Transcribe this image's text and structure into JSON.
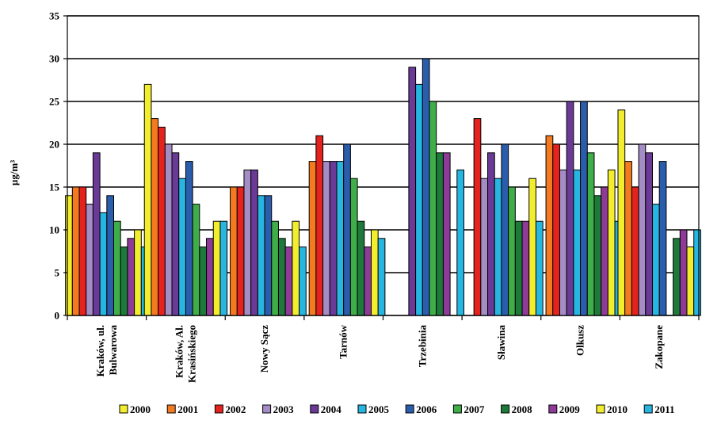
{
  "chart_data": {
    "type": "bar",
    "ylabel": "µg/m³",
    "ylim": [
      0,
      35
    ],
    "yticks": [
      0,
      5,
      10,
      15,
      20,
      25,
      30,
      35
    ],
    "grid": true,
    "legend_position": "bottom",
    "categories": [
      [
        "Kraków, ul.",
        "Bulwarowa"
      ],
      [
        "Kraków, Al.",
        "Krasińskiego"
      ],
      [
        "Nowy Sącz"
      ],
      [
        "Tarnów"
      ],
      [
        "Trzebinia"
      ],
      [
        "Sławina"
      ],
      [
        "Olkusz"
      ],
      [
        "Zakopane"
      ]
    ],
    "series": [
      {
        "name": "2000",
        "color": "#f2ee2e",
        "values": [
          14,
          27,
          null,
          null,
          null,
          null,
          null,
          24
        ]
      },
      {
        "name": "2001",
        "color": "#f47a20",
        "values": [
          15,
          23,
          15,
          18,
          null,
          null,
          21,
          18
        ]
      },
      {
        "name": "2002",
        "color": "#e5231e",
        "values": [
          15,
          22,
          15,
          21,
          null,
          23,
          20,
          15
        ]
      },
      {
        "name": "2003",
        "color": "#a48cc4",
        "values": [
          13,
          20,
          17,
          18,
          null,
          16,
          17,
          20
        ]
      },
      {
        "name": "2004",
        "color": "#6a3a96",
        "values": [
          19,
          19,
          17,
          18,
          29,
          19,
          25,
          19
        ]
      },
      {
        "name": "2005",
        "color": "#26b6e0",
        "values": [
          12,
          16,
          14,
          18,
          27,
          16,
          17,
          13
        ]
      },
      {
        "name": "2006",
        "color": "#2a5dab",
        "values": [
          14,
          18,
          14,
          20,
          30,
          20,
          25,
          18
        ]
      },
      {
        "name": "2007",
        "color": "#3fae49",
        "values": [
          11,
          13,
          11,
          16,
          25,
          15,
          19,
          null
        ]
      },
      {
        "name": "2008",
        "color": "#1e7a3a",
        "values": [
          8,
          8,
          9,
          11,
          19,
          11,
          14,
          9
        ]
      },
      {
        "name": "2009",
        "color": "#8e3b98",
        "values": [
          9,
          9,
          8,
          8,
          19,
          11,
          15,
          10
        ]
      },
      {
        "name": "2010",
        "color": "#f2ee2e",
        "values": [
          10,
          11,
          11,
          10,
          null,
          16,
          17,
          8
        ]
      },
      {
        "name": "2011",
        "color": "#26b6e0",
        "values": [
          8,
          11,
          8,
          9,
          17,
          11,
          11,
          10
        ]
      }
    ]
  }
}
